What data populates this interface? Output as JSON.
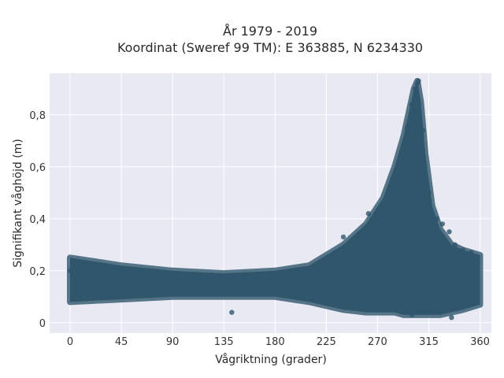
{
  "chart_data": {
    "type": "scatter",
    "title": "År 1979 - 2019",
    "subtitle": "Koordinat (Sweref 99 TM): E 363885, N 6234330",
    "xlabel": "Vågriktning (grader)",
    "ylabel": "Signifikant våghöjd (m)",
    "xlim": [
      -18,
      370
    ],
    "ylim": [
      -0.04,
      0.96
    ],
    "xticks": [
      0,
      45,
      90,
      135,
      180,
      225,
      270,
      315,
      360
    ],
    "yticks": [
      0,
      0.2,
      0.4,
      0.6,
      0.8
    ],
    "ytick_labels": [
      "0",
      "0,2",
      "0,4",
      "0,6",
      "0,8"
    ],
    "grid": true,
    "background": "#e8e9f3",
    "marker_color": "#2f566c",
    "envelope": {
      "x": [
        0,
        45,
        90,
        135,
        180,
        210,
        240,
        260,
        275,
        285,
        293,
        298,
        302,
        305,
        308,
        312,
        318,
        325,
        335,
        345,
        360
      ],
      "y_low": [
        0.08,
        0.09,
        0.1,
        0.1,
        0.1,
        0.08,
        0.05,
        0.04,
        0.04,
        0.04,
        0.03,
        0.03,
        0.03,
        0.03,
        0.03,
        0.03,
        0.03,
        0.03,
        0.04,
        0.05,
        0.07
      ],
      "y_high": [
        0.25,
        0.22,
        0.2,
        0.19,
        0.2,
        0.22,
        0.3,
        0.38,
        0.48,
        0.6,
        0.72,
        0.82,
        0.9,
        0.93,
        0.85,
        0.65,
        0.45,
        0.36,
        0.3,
        0.28,
        0.26
      ]
    },
    "points": [
      {
        "x": 0,
        "y": 0.2
      },
      {
        "x": 10,
        "y": 0.18
      },
      {
        "x": 22,
        "y": 0.15
      },
      {
        "x": 45,
        "y": 0.17
      },
      {
        "x": 68,
        "y": 0.16
      },
      {
        "x": 90,
        "y": 0.15
      },
      {
        "x": 112,
        "y": 0.14
      },
      {
        "x": 135,
        "y": 0.13
      },
      {
        "x": 142,
        "y": 0.04
      },
      {
        "x": 158,
        "y": 0.14
      },
      {
        "x": 180,
        "y": 0.14
      },
      {
        "x": 202,
        "y": 0.15
      },
      {
        "x": 225,
        "y": 0.17
      },
      {
        "x": 240,
        "y": 0.33
      },
      {
        "x": 250,
        "y": 0.22
      },
      {
        "x": 262,
        "y": 0.42
      },
      {
        "x": 270,
        "y": 0.25
      },
      {
        "x": 280,
        "y": 0.5
      },
      {
        "x": 288,
        "y": 0.58
      },
      {
        "x": 292,
        "y": 0.64
      },
      {
        "x": 296,
        "y": 0.75
      },
      {
        "x": 300,
        "y": 0.84
      },
      {
        "x": 303,
        "y": 0.9
      },
      {
        "x": 305,
        "y": 0.92
      },
      {
        "x": 306,
        "y": 0.93
      },
      {
        "x": 310,
        "y": 0.74
      },
      {
        "x": 315,
        "y": 0.5
      },
      {
        "x": 322,
        "y": 0.4
      },
      {
        "x": 327,
        "y": 0.38
      },
      {
        "x": 333,
        "y": 0.35
      },
      {
        "x": 338,
        "y": 0.3
      },
      {
        "x": 345,
        "y": 0.28
      },
      {
        "x": 352,
        "y": 0.27
      },
      {
        "x": 358,
        "y": 0.25
      },
      {
        "x": 300,
        "y": 0.03
      },
      {
        "x": 335,
        "y": 0.02
      }
    ]
  }
}
